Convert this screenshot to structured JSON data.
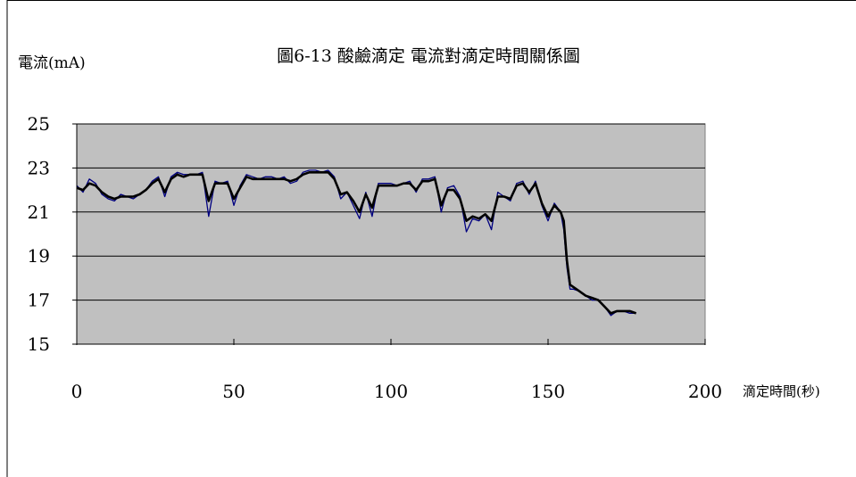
{
  "chart_data": {
    "type": "line",
    "title": "圖6-13 酸鹼滴定 電流對滴定時間關係圖",
    "ylabel": "電流(mA)",
    "xlabel": "滴定時間(秒)",
    "xlim": [
      0,
      200
    ],
    "ylim": [
      15,
      25
    ],
    "x_ticks": [
      "0",
      "50",
      "100",
      "150",
      "200"
    ],
    "y_ticks": [
      "25",
      "23",
      "21",
      "19",
      "17",
      "15"
    ],
    "grid": "horizontal",
    "plot_background": "#c0c0c0",
    "series": [
      {
        "color": "#000080",
        "x": [
          0,
          2,
          4,
          6,
          8,
          10,
          12,
          14,
          16,
          18,
          20,
          22,
          24,
          26,
          28,
          30,
          32,
          34,
          36,
          38,
          40,
          42,
          44,
          46,
          48,
          50,
          52,
          54,
          56,
          58,
          60,
          62,
          64,
          66,
          68,
          70,
          72,
          74,
          76,
          78,
          80,
          82,
          84,
          86,
          88,
          90,
          92,
          94,
          96,
          98,
          100,
          102,
          104,
          106,
          108,
          110,
          112,
          114,
          116,
          118,
          120,
          122,
          124,
          126,
          128,
          130,
          132,
          134,
          136,
          138,
          140,
          142,
          144,
          146,
          148,
          150,
          152,
          154,
          155,
          156,
          157,
          158,
          160,
          162,
          164,
          166,
          168,
          170,
          172,
          174,
          176,
          178
        ],
        "y": [
          22.2,
          21.9,
          22.5,
          22.3,
          21.8,
          21.6,
          21.5,
          21.8,
          21.7,
          21.6,
          21.8,
          22.0,
          22.4,
          22.6,
          21.7,
          22.6,
          22.8,
          22.7,
          22.7,
          22.7,
          22.8,
          20.8,
          22.4,
          22.3,
          22.4,
          21.3,
          22.2,
          22.7,
          22.6,
          22.5,
          22.6,
          22.6,
          22.5,
          22.6,
          22.3,
          22.4,
          22.8,
          22.9,
          22.9,
          22.8,
          22.9,
          22.6,
          21.6,
          21.9,
          21.3,
          20.7,
          21.9,
          20.8,
          22.3,
          22.3,
          22.3,
          22.2,
          22.3,
          22.4,
          21.9,
          22.5,
          22.5,
          22.6,
          21.0,
          22.1,
          22.2,
          21.7,
          20.1,
          20.7,
          20.6,
          20.9,
          20.2,
          21.9,
          21.7,
          21.5,
          22.3,
          22.4,
          21.8,
          22.4,
          21.3,
          20.6,
          21.4,
          21.0,
          20.2,
          18.5,
          17.5,
          17.5,
          17.4,
          17.2,
          17.0,
          17.0,
          16.7,
          16.3,
          16.5,
          16.5,
          16.4,
          16.4
        ]
      },
      {
        "color": "#000000",
        "x": [
          0,
          2,
          4,
          6,
          8,
          10,
          12,
          14,
          16,
          18,
          20,
          22,
          24,
          26,
          28,
          30,
          32,
          34,
          36,
          38,
          40,
          42,
          44,
          46,
          48,
          50,
          52,
          54,
          56,
          58,
          60,
          62,
          64,
          66,
          68,
          70,
          72,
          74,
          76,
          78,
          80,
          82,
          84,
          86,
          88,
          90,
          92,
          94,
          96,
          98,
          100,
          102,
          104,
          106,
          108,
          110,
          112,
          114,
          116,
          118,
          120,
          122,
          124,
          126,
          128,
          130,
          132,
          134,
          136,
          138,
          140,
          142,
          144,
          146,
          148,
          150,
          152,
          154,
          155,
          156,
          157,
          158,
          160,
          162,
          164,
          166,
          168,
          170,
          172,
          174,
          176,
          178
        ],
        "y": [
          22.1,
          22.0,
          22.3,
          22.2,
          21.9,
          21.7,
          21.6,
          21.7,
          21.7,
          21.7,
          21.8,
          22.0,
          22.3,
          22.5,
          21.9,
          22.5,
          22.7,
          22.6,
          22.7,
          22.7,
          22.7,
          21.5,
          22.3,
          22.3,
          22.3,
          21.6,
          22.1,
          22.6,
          22.5,
          22.5,
          22.5,
          22.5,
          22.5,
          22.5,
          22.4,
          22.5,
          22.7,
          22.8,
          22.8,
          22.8,
          22.8,
          22.5,
          21.8,
          21.9,
          21.5,
          21.0,
          21.8,
          21.2,
          22.2,
          22.2,
          22.2,
          22.2,
          22.3,
          22.3,
          22.0,
          22.4,
          22.4,
          22.5,
          21.3,
          22.0,
          22.0,
          21.6,
          20.6,
          20.8,
          20.7,
          20.9,
          20.6,
          21.7,
          21.7,
          21.6,
          22.2,
          22.3,
          21.9,
          22.3,
          21.4,
          20.8,
          21.3,
          21.0,
          20.6,
          18.8,
          17.7,
          17.6,
          17.4,
          17.2,
          17.1,
          17.0,
          16.7,
          16.4,
          16.5,
          16.5,
          16.5,
          16.4
        ]
      }
    ]
  }
}
